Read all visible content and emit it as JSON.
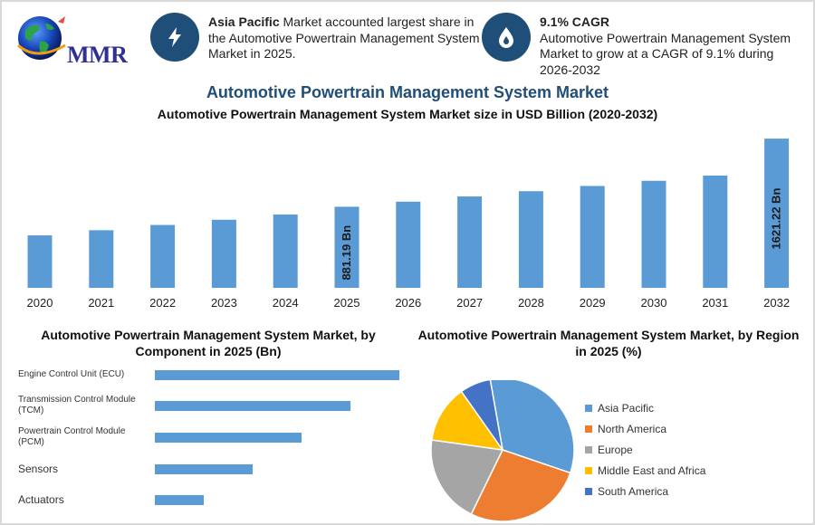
{
  "logo": {
    "text": "MMR"
  },
  "info_left": {
    "icon": "lightning-bolt-icon",
    "bold": "Asia Pacific",
    "text": " Market accounted largest share in the Automotive Powertrain Management System Market in 2025."
  },
  "info_right": {
    "icon": "flame-drop-icon",
    "bold": "9.1% CAGR",
    "text": "Automotive Powertrain Management System Market to grow at a CAGR of 9.1% during 2026-2032"
  },
  "main_title": "Automotive Powertrain Management System Market",
  "colors": {
    "bar": "#5b9bd5",
    "title": "#1f4e79"
  },
  "chart_data": [
    {
      "type": "bar",
      "title": "Automotive Powertrain Management System Market size in USD Billion (2020-2032)",
      "categories": [
        "2020",
        "2021",
        "2022",
        "2023",
        "2024",
        "2025",
        "2026",
        "2027",
        "2028",
        "2029",
        "2030",
        "2031",
        "2032"
      ],
      "values": [
        570,
        626,
        683,
        740,
        797,
        881.19,
        936,
        993,
        1050,
        1107,
        1163,
        1220,
        1621.22
      ],
      "ylim": [
        0,
        1721
      ],
      "data_labels": [
        {
          "index": 5,
          "text": "881.19 Bn"
        },
        {
          "index": 12,
          "text": "1621.22 Bn"
        }
      ]
    },
    {
      "type": "bar",
      "orientation": "horizontal",
      "title": "Automotive Powertrain Management System Market, by Component in 2025 (Bn)",
      "categories": [
        "Engine Control Unit (ECU)",
        "Transmission Control Module (TCM)",
        "Powertrain Control Module (PCM)",
        "Sensors",
        "Actuators"
      ],
      "values": [
        270,
        216,
        162,
        108,
        54
      ],
      "xlim": [
        0,
        270
      ]
    },
    {
      "type": "pie",
      "title": "Automotive Powertrain Management System Market, by Region in 2025 (%)",
      "labels": [
        "Asia Pacific",
        "North America",
        "Europe",
        "Middle East and Africa",
        "South America"
      ],
      "values": [
        33,
        27,
        20,
        13,
        7
      ],
      "colors": [
        "#5b9bd5",
        "#ed7d31",
        "#a5a5a5",
        "#ffc000",
        "#4472c4"
      ],
      "legend_position": "right"
    }
  ]
}
